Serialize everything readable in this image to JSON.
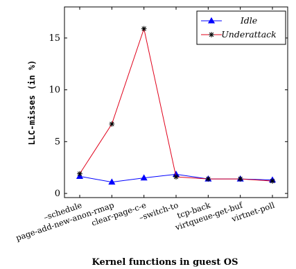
{
  "chart_data": {
    "type": "line",
    "categories": [
      "–schedule",
      "page-add-new-anon-rmap",
      "clear-page-c-e",
      "–switch-to",
      "tcp-back",
      "virtqueue-get-buf",
      "virtnet-poll"
    ],
    "series": [
      {
        "name": "Idle",
        "values": [
          1.65,
          1.1,
          1.5,
          1.85,
          1.4,
          1.4,
          1.3
        ],
        "color": "#0000ff",
        "marker": "triangle"
      },
      {
        "name": "Underattack",
        "values": [
          1.9,
          6.7,
          15.9,
          1.6,
          1.4,
          1.4,
          1.2
        ],
        "color": "#e0001a",
        "marker": "star"
      }
    ],
    "xlabel": "Kernel functions in guest OS",
    "ylabel": "LLC-misses (in %)",
    "ylim": [
      -0.4,
      18
    ],
    "yticks": [
      0,
      5,
      10,
      15
    ],
    "legend_position": "top-right",
    "grid": false
  }
}
